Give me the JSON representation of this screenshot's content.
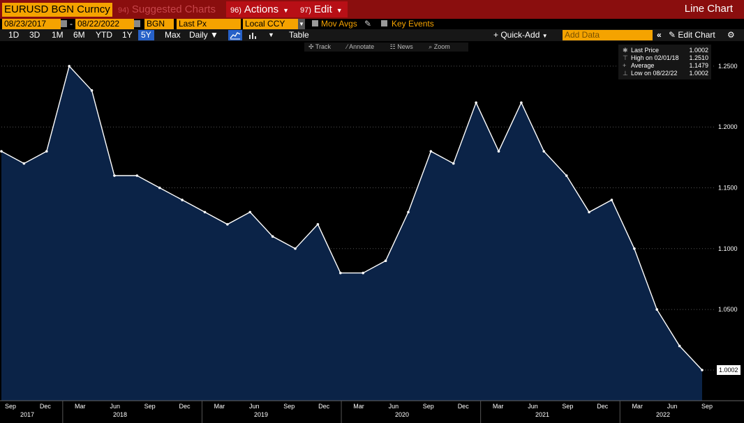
{
  "title_bar": {
    "ticker": "EURUSD BGN Curncy",
    "suggested_num": "94)",
    "suggested_label": "Suggested Charts",
    "actions_num": "96)",
    "actions_label": "Actions",
    "edit_num": "97)",
    "edit_label": "Edit",
    "chart_type": "Line Chart"
  },
  "params": {
    "start_date": "08/23/2017",
    "end_date": "08/22/2022",
    "separator": "-",
    "source": "BGN",
    "field": "Last Px",
    "currency": "Local CCY",
    "mov_avgs": "Mov Avgs",
    "key_events": "Key Events"
  },
  "toolbar": {
    "periods": [
      "1D",
      "3D",
      "1M",
      "6M",
      "YTD",
      "1Y",
      "5Y",
      "Max"
    ],
    "selected_period": "5Y",
    "frequency": "Daily",
    "table_label": "Table",
    "quick_add": "+ Quick-Add",
    "add_data_placeholder": "Add Data",
    "edit_chart": "Edit Chart"
  },
  "chart_tools": [
    "Track",
    "Annotate",
    "News",
    "Zoom"
  ],
  "legend": {
    "rows": [
      {
        "label": "Last Price",
        "value": "1.0002"
      },
      {
        "label": "High on 02/01/18",
        "value": "1.2510"
      },
      {
        "label": "Average",
        "value": "1.1479"
      },
      {
        "label": "Low on 08/22/22",
        "value": "1.0002"
      }
    ]
  },
  "colors": {
    "accent": "#f5a300",
    "title_bar": "#8a0e0e",
    "menu": "#b80f16",
    "area_fill": "#0b2347",
    "line": "#ffffff"
  },
  "chart_data": {
    "type": "area",
    "series": [
      {
        "x": [
          "2017-08",
          "2017-10",
          "2017-12",
          "2018-02",
          "2018-04",
          "2018-06",
          "2018-08",
          "2018-10",
          "2018-12",
          "2019-02",
          "2019-04",
          "2019-06",
          "2019-08",
          "2019-10",
          "2019-12",
          "2020-02",
          "2020-03",
          "2020-04",
          "2020-06",
          "2020-08",
          "2020-10",
          "2021-01",
          "2021-03",
          "2021-05",
          "2021-07",
          "2021-09",
          "2021-11",
          "2022-01",
          "2022-03",
          "2022-05",
          "2022-07",
          "2022-08"
        ],
        "values": [
          1.18,
          1.17,
          1.18,
          1.25,
          1.23,
          1.16,
          1.16,
          1.15,
          1.14,
          1.13,
          1.12,
          1.13,
          1.11,
          1.1,
          1.12,
          1.08,
          1.08,
          1.09,
          1.13,
          1.18,
          1.17,
          1.22,
          1.18,
          1.22,
          1.18,
          1.16,
          1.13,
          1.14,
          1.1,
          1.05,
          1.02,
          1.0002
        ]
      }
    ],
    "ylim": [
      0.975,
      1.27
    ],
    "y_ticks": [
      "1.0002",
      "1.0500",
      "1.1000",
      "1.1500",
      "1.2000",
      "1.2500"
    ],
    "x_month_labels": [
      "Sep",
      "Dec",
      "Mar",
      "Jun",
      "Sep",
      "Dec",
      "Mar",
      "Jun",
      "Sep",
      "Dec",
      "Mar",
      "Jun",
      "Sep",
      "Dec",
      "Mar",
      "Jun",
      "Sep",
      "Dec",
      "Mar",
      "Jun",
      "Sep"
    ],
    "x_year_labels": [
      "2017",
      "2018",
      "2019",
      "2020",
      "2021",
      "2022"
    ],
    "last_value_label": "1.0002",
    "grid": true,
    "legend_position": "top-right"
  }
}
